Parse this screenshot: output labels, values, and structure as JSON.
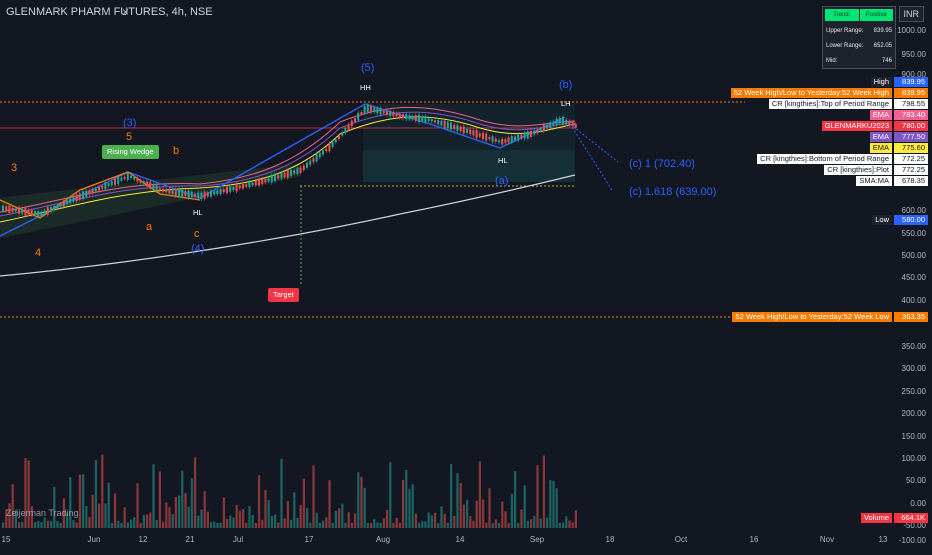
{
  "header": {
    "title": "GLENMARK PHARM FUTURES, 4h, NSE",
    "close_icon": "close-icon"
  },
  "currency": "INR",
  "info_table": {
    "head": [
      "Trend:",
      "Positive"
    ],
    "rows": [
      {
        "k": "Upper Range:",
        "v": "839.95"
      },
      {
        "k": "Lower Range:",
        "v": "652.05"
      },
      {
        "k": "Mid:",
        "v": "746"
      }
    ]
  },
  "y_axis": [
    "1000.00",
    "950.00",
    "900.00",
    "600.00",
    "550.00",
    "500.00",
    "450.00",
    "400.00",
    "350.00",
    "300.00",
    "250.00",
    "200.00",
    "150.00",
    "100.00",
    "50.00",
    "0.00",
    "-50.00",
    "-100.00"
  ],
  "x_axis": [
    "15",
    "Jun",
    "12",
    "21",
    "Jul",
    "17",
    "Aug",
    "14",
    "Sep",
    "18",
    "Oct",
    "16",
    "Nov",
    "13"
  ],
  "price_tags": [
    {
      "text": "High",
      "value": "839.95",
      "bg": "#1e222d",
      "vbg": "#2962ff"
    },
    {
      "text": "52 Week High/Low to Yesterday:52 Week High",
      "value": "839.95",
      "bg": "#f57c00",
      "vbg": "#f57c00"
    },
    {
      "text": "CR [kingthies]:Top of Period Range",
      "value": "798.55",
      "bg": "#ffffff",
      "vbg": "#ffffff"
    },
    {
      "text": "EMA",
      "value": "783.40",
      "bg": "#f06292",
      "vbg": "#f06292"
    },
    {
      "text": "GLENMARKU2023",
      "value": "780.00",
      "bg": "#f23645",
      "vbg": "#f23645"
    },
    {
      "text": "EMA",
      "value": "777.50",
      "bg": "#7e57c2",
      "vbg": "#7e57c2"
    },
    {
      "text": "EMA",
      "value": "775.60",
      "bg": "#ffeb3b",
      "vbg": "#ffeb3b"
    },
    {
      "text": "CR [kingthies]:Bottom of Period Range",
      "value": "772.25",
      "bg": "#ffffff",
      "vbg": "#ffffff"
    },
    {
      "text": "CR [kingthies]:Plot",
      "value": "772.25",
      "bg": "#ffffff",
      "vbg": "#ffffff"
    },
    {
      "text": "SMA:MA",
      "value": "678.35",
      "bg": "#ffffff",
      "vbg": "#ffffff"
    },
    {
      "text": "Low",
      "value": "580.00",
      "bg": "#1e222d",
      "vbg": "#2962ff"
    },
    {
      "text": "52 Week High/Low to Yesterday:52 Week Low",
      "value": "363.35",
      "bg": "#f57c00",
      "vbg": "#f57c00"
    },
    {
      "text": "Volume",
      "value": "664.1K",
      "bg": "#f23645",
      "vbg": "#f23645"
    }
  ],
  "annotations": {
    "wave3_blue": "(3)",
    "wave5_blue": "(5)",
    "wave4_blue": "(4)",
    "waveb_blue": "(b)",
    "wavea_blue": "(a)",
    "wave3_orange": "3",
    "wave4_orange": "4",
    "wave5_orange": "5",
    "a_orange": "a",
    "b_orange": "b",
    "c_orange": "c",
    "hh": "HH",
    "hl1": "HL",
    "hl2": "HL",
    "lh": "LH",
    "rising_wedge": "Rising Wedge",
    "target": "Target",
    "fib1": "(c) 1 (702.40)",
    "fib2": "(c) 1.618 (639.00)"
  },
  "watermark": "Zeijerman Trading",
  "colors": {
    "bg": "#131722",
    "up": "#26a69a",
    "down": "#ef5350",
    "accent": "#2962ff",
    "orange": "#f57c00"
  }
}
